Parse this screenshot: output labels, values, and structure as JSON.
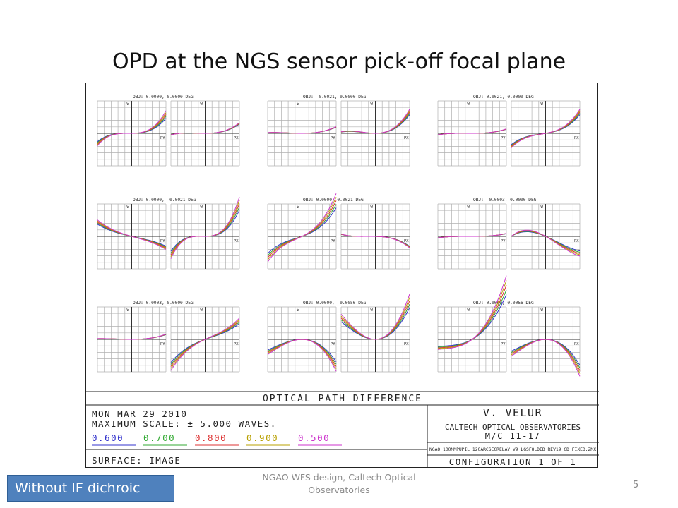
{
  "slide": {
    "title": "OPD at the NGS sensor pick-off focal plane",
    "badge": "Without IF dichroic",
    "footer": "NGAO WFS design, Caltech Optical Observatories",
    "page_number": "5"
  },
  "figure": {
    "header": "OPTICAL PATH DIFFERENCE",
    "date": "MON MAR 29 2010",
    "max_scale": "MAXIMUM SCALE: ± 5.000 WAVES.",
    "surface": "SURFACE: IMAGE",
    "author": "V. VELUR",
    "org": "CALTECH OPTICAL OBSERVATORIES",
    "mc": "M/C 11-17",
    "file": "NGAO_100MMPUPIL_120ARCSECRELAY_V9_LGSFOLDED_REV19_GD_FIXED.ZMX",
    "config": "CONFIGURATION 1 OF 1",
    "axis_w": "W",
    "axis_py": "PY",
    "axis_px": "PX"
  },
  "chart_data": {
    "type": "line",
    "description_units": "OPD in waves vs normalized pupil coordinate",
    "max_scale_waves": 5.0,
    "wavelengths": [
      {
        "label": "0.600",
        "color": "#3333cc"
      },
      {
        "label": "0.700",
        "color": "#33aa33"
      },
      {
        "label": "0.800",
        "color": "#dd3333"
      },
      {
        "label": "0.900",
        "color": "#b8a000"
      },
      {
        "label": "0.500",
        "color": "#cc33cc"
      }
    ],
    "fields": [
      {
        "label": "OBJ: 0.0000, 0.0000 DEG",
        "py": [
          0.3,
          0.02,
          1.0,
          0.4
        ],
        "px": [
          0.3,
          0.0,
          0.4,
          0.15
        ]
      },
      {
        "label": "OBJ: -0.0021, 0.0000 DEG",
        "py": [
          0.25,
          0.0,
          0.2,
          0.1
        ],
        "px": [
          0.8,
          0.0,
          0.7,
          0.25
        ]
      },
      {
        "label": "OBJ: 0.0021, 0.0000 DEG",
        "py": [
          0.1,
          0.0,
          0.2,
          0.1
        ],
        "px": [
          0.3,
          0.4,
          0.8,
          0.25
        ]
      },
      {
        "label": "OBJ: 0.0000, -0.0021 DEG",
        "py": [
          0.1,
          -0.6,
          -0.3,
          0.3
        ],
        "px": [
          0.5,
          0.0,
          1.8,
          0.4
        ]
      },
      {
        "label": "OBJ: 0.0000, 0.0021 DEG",
        "py": [
          0.5,
          1.0,
          1.0,
          0.4
        ],
        "px": [
          -0.3,
          -0.05,
          -0.4,
          0.15
        ]
      },
      {
        "label": "OBJ: -0.0003, 0.0000 DEG",
        "py": [
          0.05,
          0.0,
          0.15,
          0.1
        ],
        "px": [
          -0.6,
          -1.2,
          0.6,
          0.3
        ]
      },
      {
        "label": "OBJ: 0.0003, 0.0000 DEG",
        "py": [
          0.2,
          0.0,
          0.15,
          0.1
        ],
        "px": [
          -0.3,
          1.0,
          0.6,
          0.3
        ]
      },
      {
        "label": "OBJ: 0.0000, -0.0056 DEG",
        "py": [
          -1.4,
          0.0,
          -0.5,
          0.35
        ],
        "px": [
          2.1,
          0.0,
          0.6,
          0.35
        ]
      },
      {
        "label": "OBJ: 0.0000, 0.0056 DEG",
        "py": [
          1.6,
          1.6,
          0.6,
          0.35
        ],
        "px": [
          -1.6,
          0.0,
          -0.6,
          0.35
        ]
      }
    ]
  },
  "colors": {
    "badge_bg": "#4f81bd",
    "grid": "#b0b0b0",
    "frame": "#222222"
  }
}
